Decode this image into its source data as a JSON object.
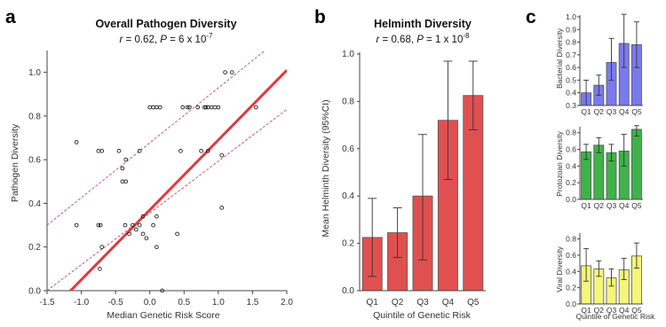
{
  "panels": {
    "a": {
      "letter": "a",
      "title": "Overall Pathogen Diversity",
      "r": "0.62",
      "p_mant": "6",
      "p_exp": "-7"
    },
    "b": {
      "letter": "b",
      "title": "Helminth Diversity",
      "r": "0.68",
      "p_mant": "1",
      "p_exp": "-8"
    },
    "c": {
      "letter": "c"
    }
  },
  "subtitle_parts": {
    "r_sym": "r",
    "eq": " = ",
    "sep": ", ",
    "p_sym": "P",
    "times": " x 10"
  },
  "colors": {
    "regression": "#e03a3e",
    "ci": "#c55a7a",
    "helminth": "#e05050",
    "bacterial": "#7a7af0",
    "protozoan": "#3fb24a",
    "viral": "#f5f57a",
    "errorbar": "#333333"
  },
  "chart_data": [
    {
      "type": "scatter",
      "title": "Overall Pathogen Diversity",
      "xlabel": "Median Genetic Risk Score",
      "ylabel": "Pathogen Diversity",
      "xlim": [
        -1.5,
        2.0
      ],
      "ylim": [
        0.0,
        1.1
      ],
      "xticks": [
        -1.5,
        -1.0,
        -0.5,
        0.0,
        0.5,
        1.0,
        1.5,
        2.0
      ],
      "yticks": [
        0.0,
        0.2,
        0.4,
        0.6,
        0.8,
        1.0
      ],
      "xtick_labels": [
        "-1.5",
        "-1.0",
        "-0.5",
        "0.0",
        "0.5",
        "1.0",
        "1.5",
        "2.0"
      ],
      "ytick_labels": [
        "0.0",
        "0.2",
        "0.4",
        "0.6",
        "0.8",
        "1.0"
      ],
      "points": [
        [
          -1.07,
          0.68
        ],
        [
          -1.07,
          0.3
        ],
        [
          -0.75,
          0.64
        ],
        [
          -0.7,
          0.64
        ],
        [
          -0.75,
          0.3
        ],
        [
          -0.72,
          0.3
        ],
        [
          -0.7,
          0.2
        ],
        [
          -0.73,
          0.1
        ],
        [
          -0.45,
          0.64
        ],
        [
          -0.4,
          0.5
        ],
        [
          -0.35,
          0.5
        ],
        [
          -0.35,
          0.6
        ],
        [
          -0.4,
          0.56
        ],
        [
          -0.36,
          0.3
        ],
        [
          -0.3,
          0.26
        ],
        [
          -0.25,
          0.3
        ],
        [
          -0.2,
          0.28
        ],
        [
          -0.15,
          0.3
        ],
        [
          -0.1,
          0.26
        ],
        [
          -0.1,
          0.34
        ],
        [
          -0.05,
          0.24
        ],
        [
          -0.15,
          0.64
        ],
        [
          0.0,
          0.84
        ],
        [
          0.05,
          0.84
        ],
        [
          0.1,
          0.84
        ],
        [
          0.15,
          0.84
        ],
        [
          0.05,
          0.3
        ],
        [
          0.1,
          0.34
        ],
        [
          0.1,
          0.2
        ],
        [
          0.18,
          0.0
        ],
        [
          0.4,
          0.26
        ],
        [
          0.45,
          0.64
        ],
        [
          0.48,
          0.84
        ],
        [
          0.55,
          0.84
        ],
        [
          0.58,
          0.84
        ],
        [
          0.7,
          0.84
        ],
        [
          0.75,
          0.64
        ],
        [
          0.8,
          0.84
        ],
        [
          0.82,
          0.84
        ],
        [
          0.85,
          0.84
        ],
        [
          0.85,
          0.64
        ],
        [
          0.9,
          0.84
        ],
        [
          0.95,
          0.84
        ],
        [
          1.0,
          0.84
        ],
        [
          1.05,
          0.62
        ],
        [
          1.05,
          0.38
        ],
        [
          1.1,
          1.0
        ],
        [
          1.2,
          1.0
        ],
        [
          1.55,
          0.84
        ]
      ],
      "regression": {
        "intercept": 0.37,
        "slope": 0.32
      },
      "ci_lower_at_xlim": [
        0.0,
        0.83
      ],
      "ci_upper_at_xlim": [
        0.3,
        1.18
      ]
    },
    {
      "type": "bar",
      "title": "Helminth Diversity",
      "xlabel": "Quintile of Genetic Risk",
      "ylabel": "Mean Helminth Diversity (95%CI)",
      "categories": [
        "Q1",
        "Q2",
        "Q3",
        "Q4",
        "Q5"
      ],
      "values": [
        0.225,
        0.245,
        0.4,
        0.72,
        0.825
      ],
      "err_low": [
        0.06,
        0.14,
        0.13,
        0.47,
        0.68
      ],
      "err_high": [
        0.39,
        0.35,
        0.66,
        0.97,
        0.97
      ],
      "ylim": [
        0.0,
        1.0
      ],
      "yticks": [
        0.0,
        0.2,
        0.4,
        0.6,
        0.8,
        1.0
      ],
      "ytick_labels": [
        "0.0",
        "0.2",
        "0.4",
        "0.6",
        "0.8",
        "1.0"
      ]
    },
    {
      "type": "bar",
      "ylabel": "Bacterial Diversity",
      "categories": [
        "Q1",
        "Q2",
        "Q3",
        "Q4",
        "Q5"
      ],
      "values": [
        0.4,
        0.46,
        0.64,
        0.79,
        0.78
      ],
      "err_low": [
        0.3,
        0.38,
        0.5,
        0.6,
        0.6
      ],
      "err_high": [
        0.5,
        0.54,
        0.83,
        1.02,
        0.96
      ],
      "ylim": [
        0.3,
        1.0
      ],
      "yticks": [
        0.3,
        0.4,
        0.5,
        0.6,
        0.7,
        0.8,
        0.9,
        1.0
      ],
      "ytick_labels": [
        "0.3",
        "0.4",
        "0.5",
        "0.6",
        "0.7",
        "0.8",
        "0.9",
        "1.0"
      ]
    },
    {
      "type": "bar",
      "ylabel": "Protozoan Diversity",
      "categories": [
        "Q1",
        "Q2",
        "Q3",
        "Q4",
        "Q5"
      ],
      "values": [
        0.57,
        0.65,
        0.56,
        0.58,
        0.84
      ],
      "err_low": [
        0.48,
        0.56,
        0.46,
        0.4,
        0.76
      ],
      "err_high": [
        0.66,
        0.74,
        0.66,
        0.78,
        0.9
      ],
      "ylim": [
        0.0,
        0.85
      ],
      "yticks": [
        0.0,
        0.2,
        0.4,
        0.6,
        0.8
      ],
      "ytick_labels": [
        "0.0",
        "0.2",
        "0.4",
        "0.6",
        "0.8"
      ]
    },
    {
      "type": "bar",
      "xlabel": "Quintile of Genetic Risk",
      "ylabel": "Viral Diversity",
      "categories": [
        "Q1",
        "Q2",
        "Q3",
        "Q4",
        "Q5"
      ],
      "values": [
        0.47,
        0.43,
        0.32,
        0.42,
        0.59
      ],
      "err_low": [
        0.28,
        0.34,
        0.22,
        0.3,
        0.44
      ],
      "err_high": [
        0.68,
        0.53,
        0.43,
        0.56,
        0.75
      ],
      "ylim": [
        0.0,
        0.85
      ],
      "yticks": [
        0.0,
        0.2,
        0.4,
        0.6,
        0.8
      ],
      "ytick_labels": [
        "0.0",
        "0.2",
        "0.4",
        "0.6",
        "0.8"
      ]
    }
  ]
}
